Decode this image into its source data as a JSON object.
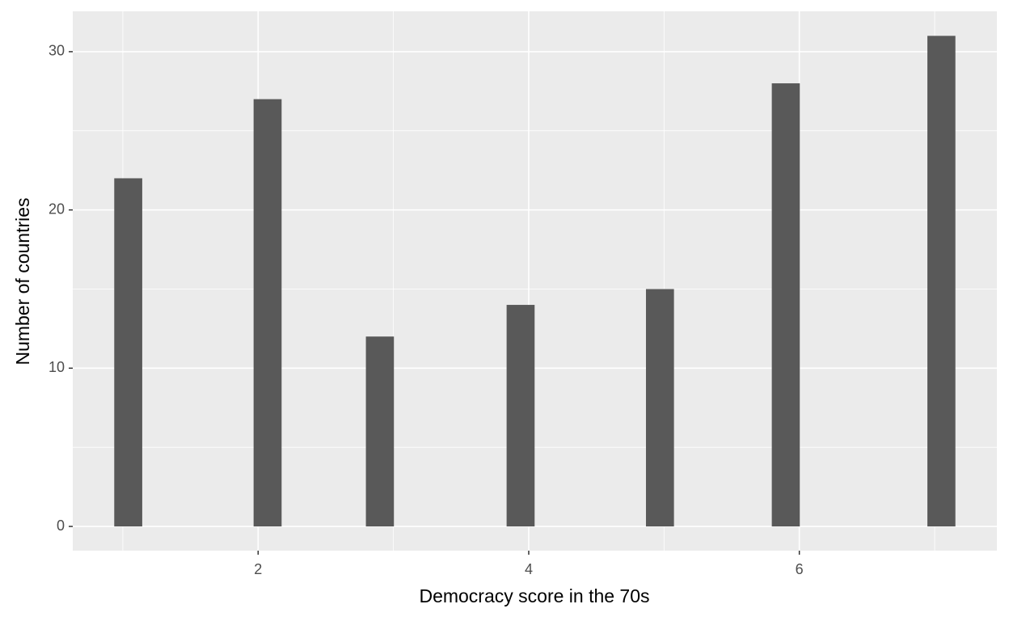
{
  "chart_data": {
    "type": "histogram",
    "x_label": "Democracy score in the 70s",
    "y_label": "Number of countries",
    "x": [
      1.04,
      2.07,
      2.9,
      3.94,
      4.97,
      5.9,
      7.05
    ],
    "bar_width": 0.207,
    "values": [
      22,
      27,
      12,
      14,
      15,
      28,
      31
    ],
    "color": "#595959",
    "xlim": [
      0.63,
      7.46
    ],
    "ylim": [
      -1.53,
      32.55
    ],
    "xticks": [
      2,
      4,
      6
    ],
    "yticks": [
      0,
      10,
      20,
      30
    ],
    "grid": true
  }
}
